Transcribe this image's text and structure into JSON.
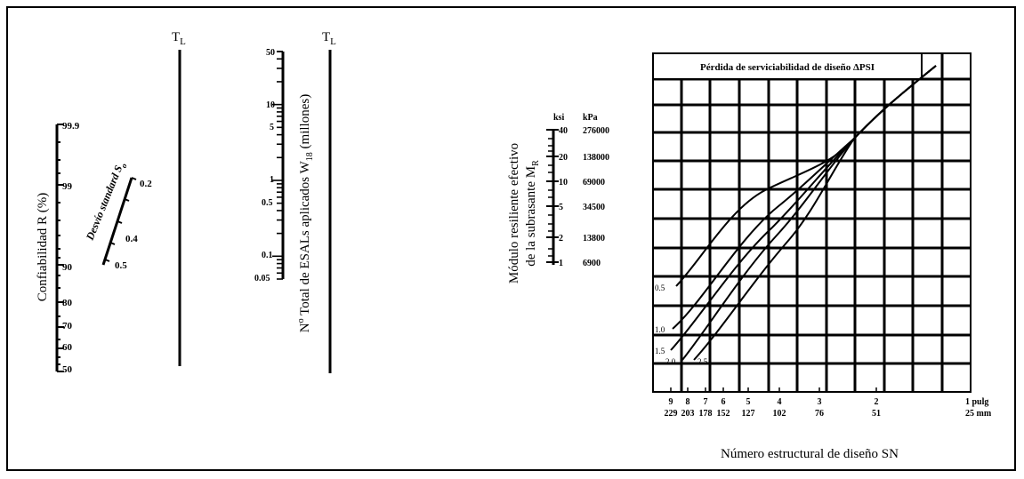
{
  "tl_label": "T",
  "tl_sub": "L",
  "reliability": {
    "axis_label": "Confiabilidad  R  (%)",
    "ticks": [
      "99.9",
      "99",
      "90",
      "80",
      "70",
      "60",
      "50"
    ]
  },
  "std_dev": {
    "label": "Desvío standard S",
    "label_sub": "o",
    "ticks": [
      "0.2",
      "0.4",
      "0.5"
    ]
  },
  "esal": {
    "axis_label": "N",
    "axis_label_sup": "o",
    "axis_label_rest": " Total de ESALs aplicados W",
    "axis_label_sub": "18",
    "axis_label_end": " (millones)",
    "ticks": [
      "50",
      "10",
      "5",
      "1",
      "0.5",
      "0.1",
      "0.05"
    ]
  },
  "modulus": {
    "axis_label_line1": "Módulo resiliente efectivo",
    "axis_label_line2": "de la subrasante  M",
    "axis_label_sub": "R",
    "units": [
      "ksi",
      "kPa"
    ],
    "ksi": [
      "40",
      "20",
      "10",
      "5",
      "2",
      "1"
    ],
    "kpa": [
      "276000",
      "138000",
      "69000",
      "34500",
      "13800",
      "6900"
    ]
  },
  "chart": {
    "title": "Pérdida de serviciabilidad de diseño ΔPSI",
    "curve_labels": [
      "0.5",
      "1.0",
      "1.5",
      "2.0",
      "2.5"
    ],
    "sn_inches": [
      "9",
      "8",
      "7",
      "6",
      "5",
      "4",
      "3",
      "2",
      "1 pulg"
    ],
    "sn_mm": [
      "229",
      "203",
      "178",
      "152",
      "127",
      "102",
      "76",
      "51",
      "25 mm"
    ],
    "xlabel": "Número estructural de diseño  SN"
  }
}
